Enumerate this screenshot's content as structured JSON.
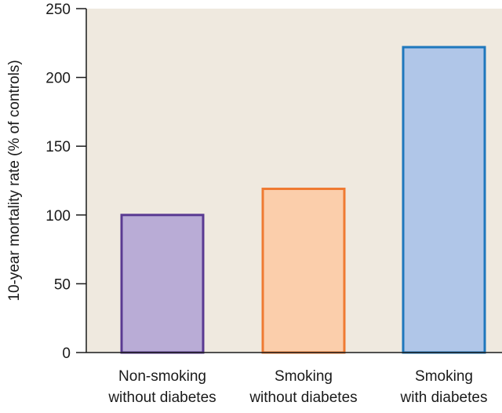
{
  "chart_data": {
    "type": "bar",
    "title": "",
    "ylabel": "10-year mortality rate (% of controls)",
    "xlabel": "",
    "ylim": [
      0,
      250
    ],
    "yticks": [
      0,
      50,
      100,
      150,
      200,
      250
    ],
    "categories": [
      [
        "Non-smoking",
        "without diabetes"
      ],
      [
        "Smoking",
        "without diabetes"
      ],
      [
        "Smoking",
        "with diabetes"
      ]
    ],
    "values": [
      100,
      119,
      222
    ],
    "bar_fills": [
      "#b9acd6",
      "#fbceab",
      "#b0c6e8"
    ],
    "bar_strokes": [
      "#5a3a92",
      "#ef7a32",
      "#1f78bd"
    ],
    "plot_background": "#efe9df",
    "grid": false,
    "legend": "none"
  }
}
